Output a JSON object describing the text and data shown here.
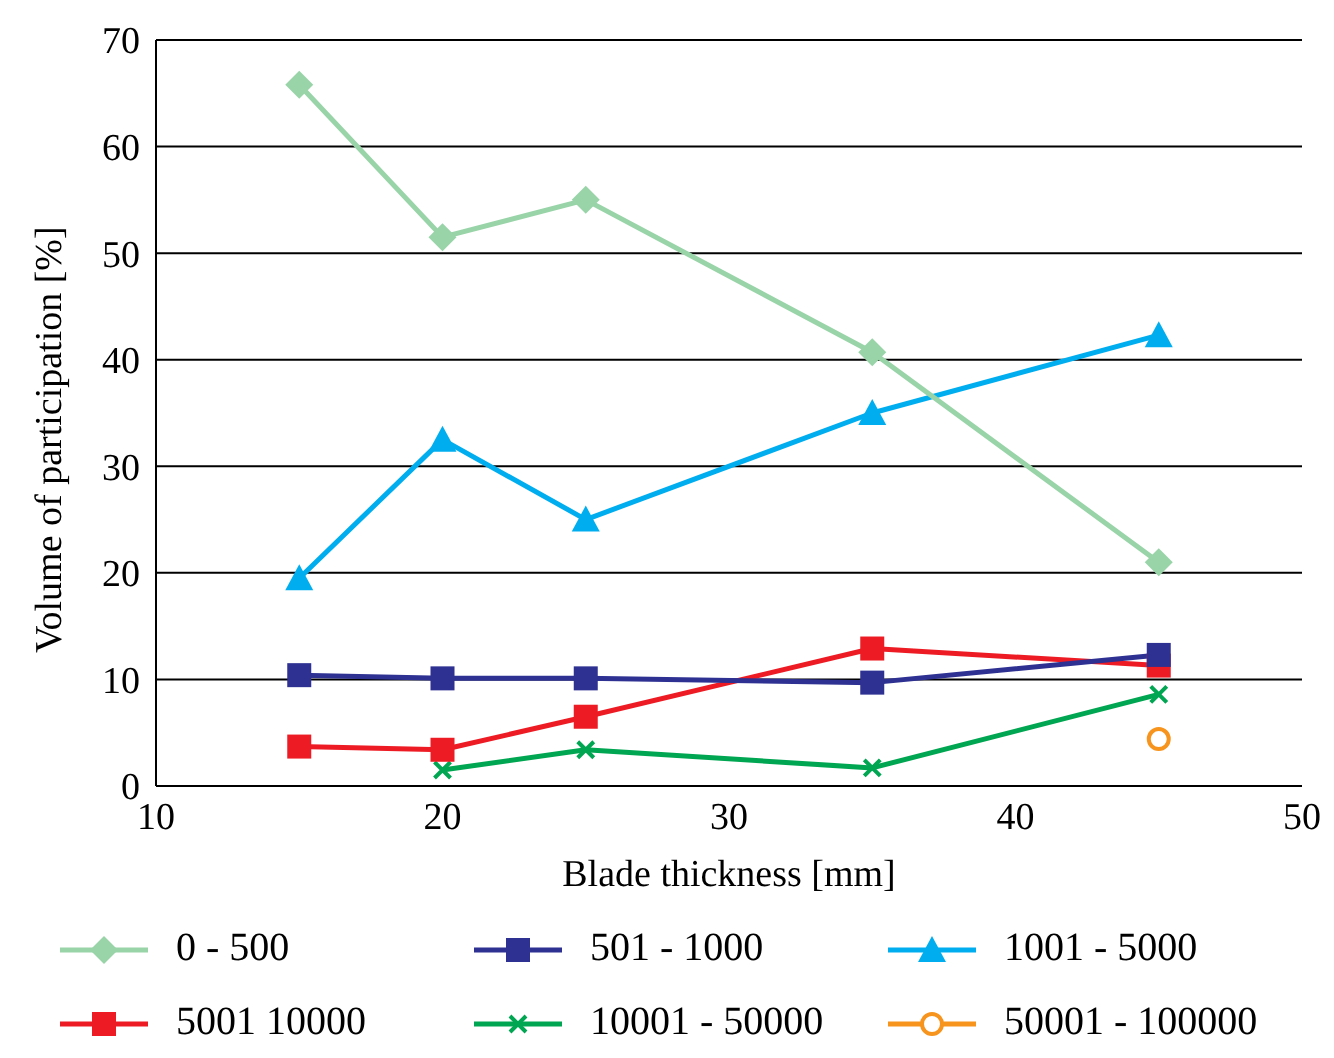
{
  "chart_data": {
    "type": "line",
    "xlabel": "Blade thickness [mm]",
    "ylabel": "Volume of participation [%]",
    "x": [
      15,
      20,
      25,
      35,
      45
    ],
    "xlim": [
      10,
      50
    ],
    "xticks": [
      10,
      20,
      30,
      40,
      50
    ],
    "ylim": [
      0,
      70
    ],
    "yticks": [
      0,
      10,
      20,
      30,
      40,
      50,
      60,
      70
    ],
    "grid": "y",
    "legend": "bottom",
    "series": [
      {
        "name": "0 - 500",
        "color": "#99d4a8",
        "marker": "diamond",
        "values": [
          65.8,
          51.5,
          55,
          40.7,
          21
        ]
      },
      {
        "name": "501 - 1000",
        "color": "#2e3192",
        "marker": "square",
        "values": [
          10.4,
          10.1,
          10.1,
          9.7,
          12.3
        ]
      },
      {
        "name": "1001 - 5000",
        "color": "#00aeef",
        "marker": "triangle",
        "values": [
          19.5,
          32.5,
          25,
          35,
          42.3
        ]
      },
      {
        "name": "5001 10000",
        "color": "#ed1c24",
        "marker": "square",
        "values": [
          3.7,
          3.4,
          6.5,
          12.9,
          11.3
        ]
      },
      {
        "name": "10001 - 50000",
        "color": "#00a651",
        "marker": "cross",
        "values": [
          null,
          1.5,
          3.4,
          1.7,
          8.6
        ]
      },
      {
        "name": "50001 - 100000",
        "color": "#f7941d",
        "marker": "circle",
        "values": [
          null,
          null,
          null,
          null,
          4.4
        ]
      }
    ]
  }
}
